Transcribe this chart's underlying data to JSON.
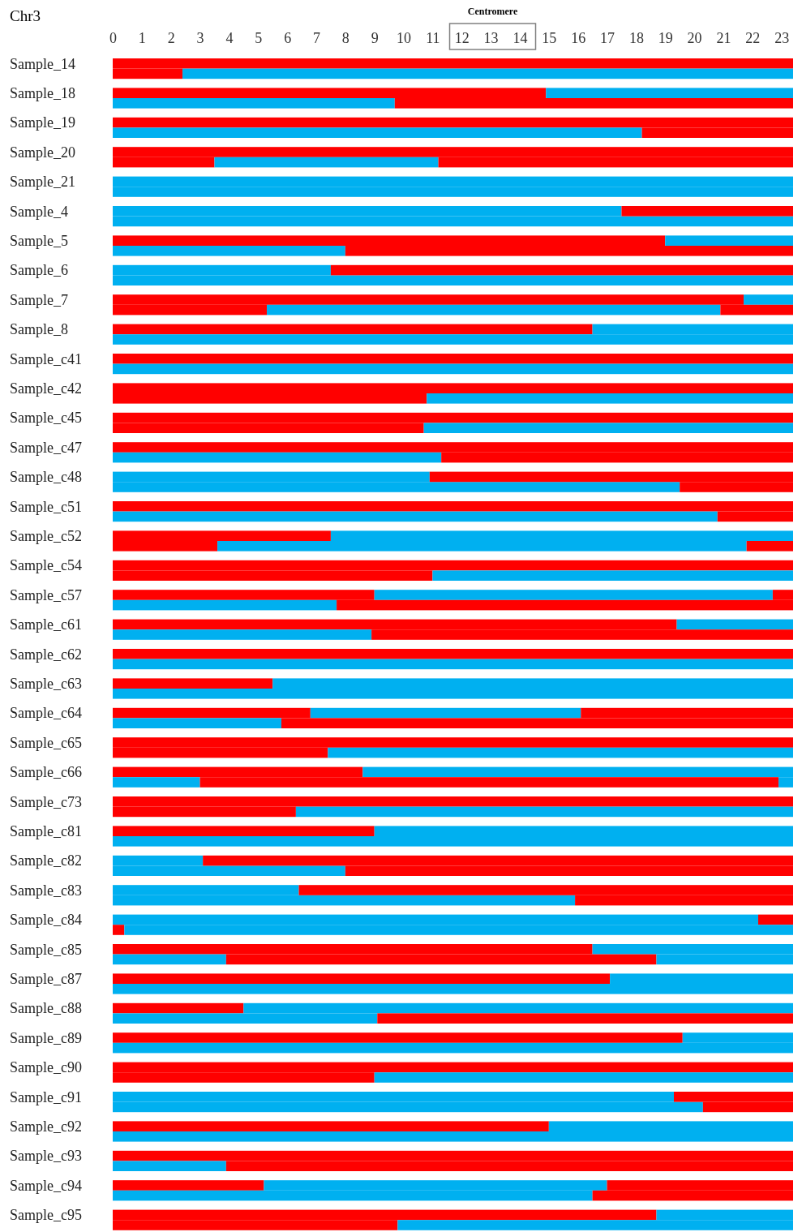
{
  "chart_data": {
    "type": "bar",
    "orientation": "horizontal",
    "stacked": true,
    "title": "Chr3",
    "categories": [
      "Sample_14",
      null,
      "Sample_18",
      null,
      "Sample_19",
      null,
      "Sample_20",
      null,
      "Sample_21",
      null,
      "Sample_4",
      null,
      "Sample_5",
      null,
      "Sample_6",
      null,
      "Sample_7",
      null,
      "Sample_8",
      null,
      "Sample_c41",
      null,
      "Sample_c42",
      null,
      "Sample_c45",
      null,
      "Sample_c47",
      null,
      "Sample_c48",
      null,
      "Sample_c51",
      null,
      "Sample_c52",
      null,
      "Sample_c54",
      null,
      "Sample_c57",
      null,
      "Sample_c61",
      null,
      "Sample_c62",
      null,
      "Sample_c63",
      null,
      "Sample_c64",
      null,
      "Sample_c65",
      null,
      "Sample_c66",
      null,
      "Sample_c73",
      null,
      "Sample_c81",
      null,
      "Sample_c82",
      null,
      "Sample_c83",
      null,
      "Sample_c84",
      null,
      "Sample_c85",
      null,
      "Sample_c87",
      null,
      "Sample_c88",
      null,
      "Sample_c89",
      null,
      "Sample_c90",
      null,
      "Sample_c91",
      null,
      "Sample_c92",
      null,
      "Sample_c93",
      null,
      "Sample_c94",
      null,
      "Sample_c95",
      null
    ],
    "xlim": [
      0,
      23.4
    ],
    "xticks": [
      0,
      1,
      2,
      3,
      4,
      5,
      6,
      7,
      8,
      9,
      10,
      11,
      12,
      13,
      14,
      15,
      16,
      17,
      18,
      19,
      20,
      21,
      22,
      23
    ],
    "annotations": [
      "Centromere"
    ],
    "series": [
      {
        "values": [
          23.4,
          2.4,
          14.9,
          9.7,
          23.4,
          18.2,
          23.4,
          3.5,
          23.4,
          23.4,
          17.5,
          23.4,
          19.0,
          8.0,
          7.5,
          23.4,
          21.7,
          5.3,
          16.5,
          23.4,
          23.4,
          23.4,
          23.4,
          10.8,
          23.4,
          10.7,
          23.4,
          11.3,
          10.9,
          19.5,
          23.4,
          20.8,
          7.5,
          3.6,
          23.4,
          11.0,
          9.0,
          7.7,
          19.4,
          8.9,
          23.4,
          23.4,
          5.5,
          23.4,
          6.8,
          5.8,
          23.4,
          7.4,
          8.6,
          3.0,
          23.4,
          6.3,
          9.0,
          23.4,
          3.1,
          8.0,
          6.4,
          15.9,
          22.2,
          0.4,
          16.5,
          3.9,
          17.1,
          23.4,
          4.5,
          9.1,
          19.6,
          23.4,
          23.4,
          9.0,
          19.3,
          20.3,
          15.0,
          23.4,
          23.4,
          3.9,
          5.2,
          16.5,
          18.7,
          9.8
        ],
        "colors": [
          "#ff0000",
          "#ff0000",
          "#ff0000",
          "#00b0f0",
          "#ff0000",
          "#00b0f0",
          "#ff0000",
          "#ff0000",
          "#00b0f0",
          "#00b0f0",
          "#00b0f0",
          "#00b0f0",
          "#ff0000",
          "#00b0f0",
          "#00b0f0",
          "#00b0f0",
          "#ff0000",
          "#ff0000",
          "#ff0000",
          "#00b0f0",
          "#ff0000",
          "#00b0f0",
          "#ff0000",
          "#ff0000",
          "#ff0000",
          "#ff0000",
          "#ff0000",
          "#00b0f0",
          "#00b0f0",
          "#00b0f0",
          "#ff0000",
          "#00b0f0",
          "#ff0000",
          "#ff0000",
          "#ff0000",
          "#ff0000",
          "#ff0000",
          "#00b0f0",
          "#ff0000",
          "#00b0f0",
          "#ff0000",
          "#00b0f0",
          "#ff0000",
          "#00b0f0",
          "#ff0000",
          "#00b0f0",
          "#ff0000",
          "#ff0000",
          "#ff0000",
          "#00b0f0",
          "#ff0000",
          "#ff0000",
          "#ff0000",
          "#00b0f0",
          "#00b0f0",
          "#00b0f0",
          "#00b0f0",
          "#00b0f0",
          "#00b0f0",
          "#ff0000",
          "#ff0000",
          "#00b0f0",
          "#ff0000",
          "#00b0f0",
          "#ff0000",
          "#00b0f0",
          "#ff0000",
          "#00b0f0",
          "#ff0000",
          "#ff0000",
          "#00b0f0",
          "#00b0f0",
          "#ff0000",
          "#00b0f0",
          "#ff0000",
          "#00b0f0",
          "#ff0000",
          "#00b0f0",
          "#ff0000",
          "#ff0000"
        ]
      },
      {
        "values": [
          null,
          21.0,
          8.5,
          13.7,
          null,
          5.2,
          null,
          7.7,
          null,
          null,
          5.9,
          null,
          4.4,
          15.4,
          15.9,
          null,
          1.7,
          15.6,
          6.9,
          null,
          null,
          null,
          null,
          12.6,
          null,
          12.7,
          null,
          12.1,
          12.5,
          3.9,
          null,
          2.6,
          15.9,
          18.2,
          null,
          12.4,
          13.7,
          15.7,
          4.0,
          14.5,
          null,
          null,
          17.9,
          null,
          9.3,
          17.6,
          null,
          16.0,
          14.8,
          19.9,
          null,
          17.1,
          14.4,
          null,
          20.3,
          15.4,
          17.0,
          7.5,
          1.2,
          23.0,
          6.9,
          14.8,
          6.3,
          null,
          18.9,
          14.3,
          3.8,
          null,
          null,
          14.4,
          4.1,
          3.1,
          8.4,
          null,
          null,
          19.5,
          11.8,
          6.9,
          4.7,
          13.6
        ],
        "colors": [
          null,
          "#00b0f0",
          "#00b0f0",
          "#ff0000",
          null,
          "#ff0000",
          null,
          "#00b0f0",
          null,
          null,
          "#ff0000",
          null,
          "#00b0f0",
          "#ff0000",
          "#ff0000",
          null,
          "#00b0f0",
          "#00b0f0",
          "#00b0f0",
          null,
          null,
          null,
          null,
          "#00b0f0",
          null,
          "#00b0f0",
          null,
          "#ff0000",
          "#ff0000",
          "#ff0000",
          null,
          "#ff0000",
          "#00b0f0",
          "#00b0f0",
          null,
          "#00b0f0",
          "#00b0f0",
          "#ff0000",
          "#00b0f0",
          "#ff0000",
          null,
          null,
          "#00b0f0",
          null,
          "#00b0f0",
          "#ff0000",
          null,
          "#00b0f0",
          "#00b0f0",
          "#ff0000",
          null,
          "#00b0f0",
          "#00b0f0",
          null,
          "#ff0000",
          "#ff0000",
          "#ff0000",
          "#ff0000",
          "#ff0000",
          "#00b0f0",
          "#00b0f0",
          "#ff0000",
          "#00b0f0",
          null,
          "#00b0f0",
          "#ff0000",
          "#00b0f0",
          null,
          null,
          "#00b0f0",
          "#ff0000",
          "#ff0000",
          "#00b0f0",
          null,
          null,
          "#ff0000",
          "#00b0f0",
          "#ff0000",
          "#00b0f0",
          "#00b0f0"
        ]
      },
      {
        "values": [
          null,
          null,
          null,
          null,
          null,
          null,
          null,
          12.2,
          null,
          null,
          null,
          null,
          null,
          null,
          null,
          null,
          null,
          2.5,
          null,
          null,
          null,
          null,
          null,
          null,
          null,
          null,
          null,
          null,
          null,
          null,
          null,
          null,
          null,
          1.6,
          null,
          null,
          0.7,
          null,
          null,
          null,
          null,
          null,
          null,
          null,
          7.3,
          null,
          null,
          null,
          null,
          0.5,
          null,
          null,
          null,
          null,
          null,
          null,
          null,
          null,
          null,
          null,
          null,
          4.7,
          null,
          null,
          null,
          null,
          null,
          null,
          null,
          null,
          null,
          null,
          null,
          null,
          null,
          null,
          6.4,
          null,
          null,
          null
        ],
        "colors": [
          null,
          null,
          null,
          null,
          null,
          null,
          null,
          "#ff0000",
          null,
          null,
          null,
          null,
          null,
          null,
          null,
          null,
          null,
          "#ff0000",
          null,
          null,
          null,
          null,
          null,
          null,
          null,
          null,
          null,
          null,
          null,
          null,
          null,
          null,
          null,
          "#ff0000",
          null,
          null,
          "#ff0000",
          null,
          null,
          null,
          null,
          null,
          null,
          null,
          "#ff0000",
          null,
          null,
          null,
          null,
          "#00b0f0",
          null,
          null,
          null,
          null,
          null,
          null,
          null,
          null,
          null,
          null,
          null,
          "#00b0f0",
          null,
          null,
          null,
          null,
          null,
          null,
          null,
          null,
          null,
          null,
          null,
          null,
          null,
          null,
          "#ff0000",
          null,
          null,
          null
        ]
      }
    ]
  }
}
